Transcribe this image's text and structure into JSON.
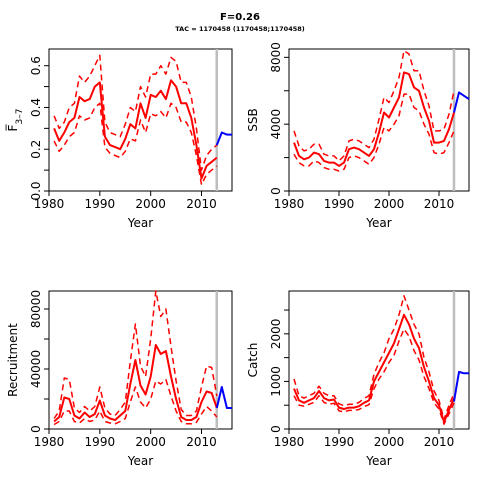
{
  "figure": {
    "title": "F=0.26",
    "subtitle": "TAC = 1170458 (1170458;1170458)"
  },
  "colors": {
    "estimate": "#ff0000",
    "forecast": "#0000ff",
    "divider": "#bebebe",
    "axis": "#000000"
  },
  "chart_data": [
    {
      "type": "line",
      "title": "",
      "xlabel": "Year",
      "ylabel": "F̅ 3–7",
      "ylabel_main": "F̅",
      "ylabel_sub": "3–7",
      "xlim": [
        1980,
        2016
      ],
      "ylim": [
        0,
        0.68
      ],
      "xticks": [
        1980,
        1990,
        2000,
        2010
      ],
      "yticks": [
        0,
        0.1,
        0.2,
        0.3,
        0.4,
        0.5,
        0.6
      ],
      "ytick_labels": [
        "0.0",
        "",
        "0.2",
        "",
        "0.4",
        "",
        "0.6"
      ],
      "vline_x": 2013,
      "x": [
        1981,
        1982,
        1983,
        1984,
        1985,
        1986,
        1987,
        1988,
        1989,
        1990,
        1991,
        1992,
        1993,
        1994,
        1995,
        1996,
        1997,
        1998,
        1999,
        2000,
        2001,
        2002,
        2003,
        2004,
        2005,
        2006,
        2007,
        2008,
        2009,
        2010,
        2011,
        2012,
        2013
      ],
      "series": [
        {
          "role": "estimate",
          "values": [
            0.3,
            0.24,
            0.28,
            0.33,
            0.35,
            0.45,
            0.43,
            0.44,
            0.5,
            0.52,
            0.26,
            0.22,
            0.21,
            0.2,
            0.25,
            0.32,
            0.3,
            0.42,
            0.35,
            0.46,
            0.45,
            0.48,
            0.44,
            0.53,
            0.5,
            0.42,
            0.42,
            0.35,
            0.22,
            0.06,
            0.12,
            0.14,
            0.16
          ]
        },
        {
          "role": "upper",
          "values": [
            0.36,
            0.3,
            0.33,
            0.4,
            0.42,
            0.55,
            0.52,
            0.55,
            0.6,
            0.65,
            0.33,
            0.28,
            0.27,
            0.26,
            0.32,
            0.4,
            0.38,
            0.5,
            0.45,
            0.56,
            0.56,
            0.6,
            0.56,
            0.64,
            0.62,
            0.52,
            0.52,
            0.45,
            0.3,
            0.1,
            0.17,
            0.2,
            0.22
          ]
        },
        {
          "role": "lower",
          "values": [
            0.24,
            0.19,
            0.22,
            0.26,
            0.28,
            0.36,
            0.34,
            0.35,
            0.4,
            0.42,
            0.21,
            0.18,
            0.17,
            0.16,
            0.19,
            0.25,
            0.24,
            0.34,
            0.28,
            0.37,
            0.36,
            0.38,
            0.35,
            0.42,
            0.4,
            0.33,
            0.33,
            0.28,
            0.17,
            0.03,
            0.08,
            0.1,
            0.12
          ]
        },
        {
          "role": "forecast",
          "x": [
            2013,
            2014,
            2015,
            2016
          ],
          "values": [
            0.22,
            0.28,
            0.27,
            0.27
          ]
        }
      ]
    },
    {
      "type": "line",
      "title": "",
      "xlabel": "Year",
      "ylabel": "SSB",
      "xlim": [
        1980,
        2016
      ],
      "ylim": [
        0,
        8500
      ],
      "xticks": [
        1980,
        1990,
        2000,
        2010
      ],
      "yticks": [
        0,
        2000,
        4000,
        6000,
        8000
      ],
      "ytick_labels": [
        "0",
        "",
        "4000",
        "",
        "8000"
      ],
      "vline_x": 2013,
      "x": [
        1981,
        1982,
        1983,
        1984,
        1985,
        1986,
        1987,
        1988,
        1989,
        1990,
        1991,
        1992,
        1993,
        1994,
        1995,
        1996,
        1997,
        1998,
        1999,
        2000,
        2001,
        2002,
        2003,
        2004,
        2005,
        2006,
        2007,
        2008,
        2009,
        2010,
        2011,
        2012,
        2013
      ],
      "series": [
        {
          "role": "estimate",
          "values": [
            2900,
            2100,
            1900,
            2000,
            2300,
            2200,
            1800,
            1700,
            1700,
            1500,
            1700,
            2500,
            2600,
            2500,
            2300,
            2100,
            2500,
            3500,
            4700,
            4400,
            5000,
            5600,
            7100,
            7000,
            6200,
            6000,
            5000,
            4200,
            2900,
            2900,
            3000,
            3700,
            4700
          ]
        },
        {
          "role": "upper",
          "values": [
            3600,
            2700,
            2400,
            2500,
            2800,
            2800,
            2200,
            2100,
            2100,
            1800,
            2100,
            3000,
            3100,
            3000,
            2800,
            2600,
            3100,
            4300,
            5600,
            5300,
            6000,
            6800,
            8400,
            8200,
            7200,
            7200,
            6000,
            5100,
            3600,
            3600,
            3700,
            4600,
            6000
          ]
        },
        {
          "role": "lower",
          "values": [
            2200,
            1700,
            1500,
            1500,
            1800,
            1700,
            1400,
            1300,
            1300,
            1200,
            1300,
            2000,
            2100,
            2000,
            1800,
            1600,
            2000,
            2800,
            3800,
            3600,
            4000,
            4500,
            5800,
            5800,
            5000,
            4800,
            4000,
            3400,
            2300,
            2200,
            2300,
            2900,
            3600
          ]
        },
        {
          "role": "forecast",
          "x": [
            2013,
            2014,
            2015,
            2016
          ],
          "values": [
            4700,
            5900,
            5700,
            5500
          ]
        }
      ]
    },
    {
      "type": "line",
      "title": "",
      "xlabel": "Year",
      "ylabel": "Recruitment",
      "xlim": [
        1980,
        2016
      ],
      "ylim": [
        0,
        92000
      ],
      "xticks": [
        1980,
        1990,
        2000,
        2010
      ],
      "yticks": [
        0,
        20000,
        40000,
        60000,
        80000
      ],
      "ytick_labels": [
        "0",
        "",
        "40000",
        "",
        "80000"
      ],
      "vline_x": 2013,
      "x": [
        1981,
        1982,
        1983,
        1984,
        1985,
        1986,
        1987,
        1988,
        1989,
        1990,
        1991,
        1992,
        1993,
        1994,
        1995,
        1996,
        1997,
        1998,
        1999,
        2000,
        2001,
        2002,
        2003,
        2004,
        2005,
        2006,
        2007,
        2008,
        2009,
        2010,
        2011,
        2012,
        2013
      ],
      "series": [
        {
          "role": "estimate",
          "values": [
            5000,
            8000,
            21000,
            20000,
            9000,
            7000,
            11000,
            8000,
            10000,
            19000,
            9000,
            7000,
            6000,
            9000,
            12000,
            30000,
            46000,
            29000,
            23000,
            35000,
            56000,
            50000,
            52000,
            35000,
            20000,
            8000,
            6000,
            6000,
            8000,
            18000,
            25000,
            24000,
            14000
          ]
        },
        {
          "role": "upper",
          "values": [
            7000,
            12000,
            34000,
            33000,
            14000,
            11000,
            15000,
            12000,
            15000,
            28000,
            14000,
            10000,
            9000,
            13000,
            18000,
            45000,
            70000,
            42000,
            35000,
            60000,
            92000,
            75000,
            80000,
            55000,
            32000,
            13000,
            9000,
            9000,
            12000,
            28000,
            42000,
            41000,
            22000
          ]
        },
        {
          "role": "lower",
          "values": [
            3000,
            5000,
            12000,
            12000,
            5000,
            4000,
            7000,
            5000,
            6000,
            12000,
            5000,
            4000,
            3500,
            5000,
            7000,
            18000,
            28000,
            18000,
            14000,
            20000,
            32000,
            30000,
            33000,
            22000,
            12000,
            5000,
            3500,
            3500,
            4500,
            10000,
            15000,
            12000,
            8000
          ]
        },
        {
          "role": "forecast",
          "x": [
            2013,
            2014,
            2015,
            2016
          ],
          "values": [
            14000,
            28000,
            14000,
            14000
          ]
        }
      ]
    },
    {
      "type": "line",
      "title": "",
      "xlabel": "Year",
      "ylabel": "Catch",
      "xlim": [
        1980,
        2016
      ],
      "ylim": [
        0,
        2900
      ],
      "xticks": [
        1980,
        1990,
        2000,
        2010
      ],
      "yticks": [
        0,
        500,
        1000,
        1500,
        2000,
        2500
      ],
      "ytick_labels": [
        "0",
        "",
        "1000",
        "",
        "2000",
        ""
      ],
      "vline_x": 2013,
      "x": [
        1981,
        1982,
        1983,
        1984,
        1985,
        1986,
        1987,
        1988,
        1989,
        1990,
        1991,
        1992,
        1993,
        1994,
        1995,
        1996,
        1997,
        1998,
        1999,
        2000,
        2001,
        2002,
        2003,
        2004,
        2005,
        2006,
        2007,
        2008,
        2009,
        2010,
        2011,
        2012,
        2013
      ],
      "series": [
        {
          "role": "estimate",
          "values": [
            850,
            600,
            550,
            600,
            650,
            800,
            650,
            600,
            620,
            450,
            420,
            450,
            450,
            480,
            550,
            600,
            1000,
            1200,
            1400,
            1600,
            1800,
            2100,
            2400,
            2200,
            1900,
            1700,
            1300,
            1000,
            650,
            500,
            150,
            400,
            650
          ]
        },
        {
          "role": "upper",
          "values": [
            1050,
            700,
            650,
            700,
            750,
            900,
            750,
            700,
            700,
            530,
            490,
            520,
            520,
            560,
            640,
            700,
            1150,
            1400,
            1600,
            1900,
            2100,
            2400,
            2800,
            2500,
            2200,
            2000,
            1500,
            1200,
            800,
            600,
            200,
            500,
            750
          ]
        },
        {
          "role": "lower",
          "values": [
            700,
            500,
            480,
            520,
            560,
            700,
            560,
            520,
            540,
            380,
            360,
            390,
            390,
            410,
            470,
            510,
            850,
            1050,
            1200,
            1400,
            1550,
            1850,
            2100,
            1950,
            1650,
            1450,
            1100,
            850,
            550,
            420,
            100,
            320,
            550
          ]
        },
        {
          "role": "forecast",
          "x": [
            2013,
            2014,
            2015,
            2016
          ],
          "values": [
            580,
            1200,
            1170,
            1170
          ]
        }
      ]
    }
  ]
}
